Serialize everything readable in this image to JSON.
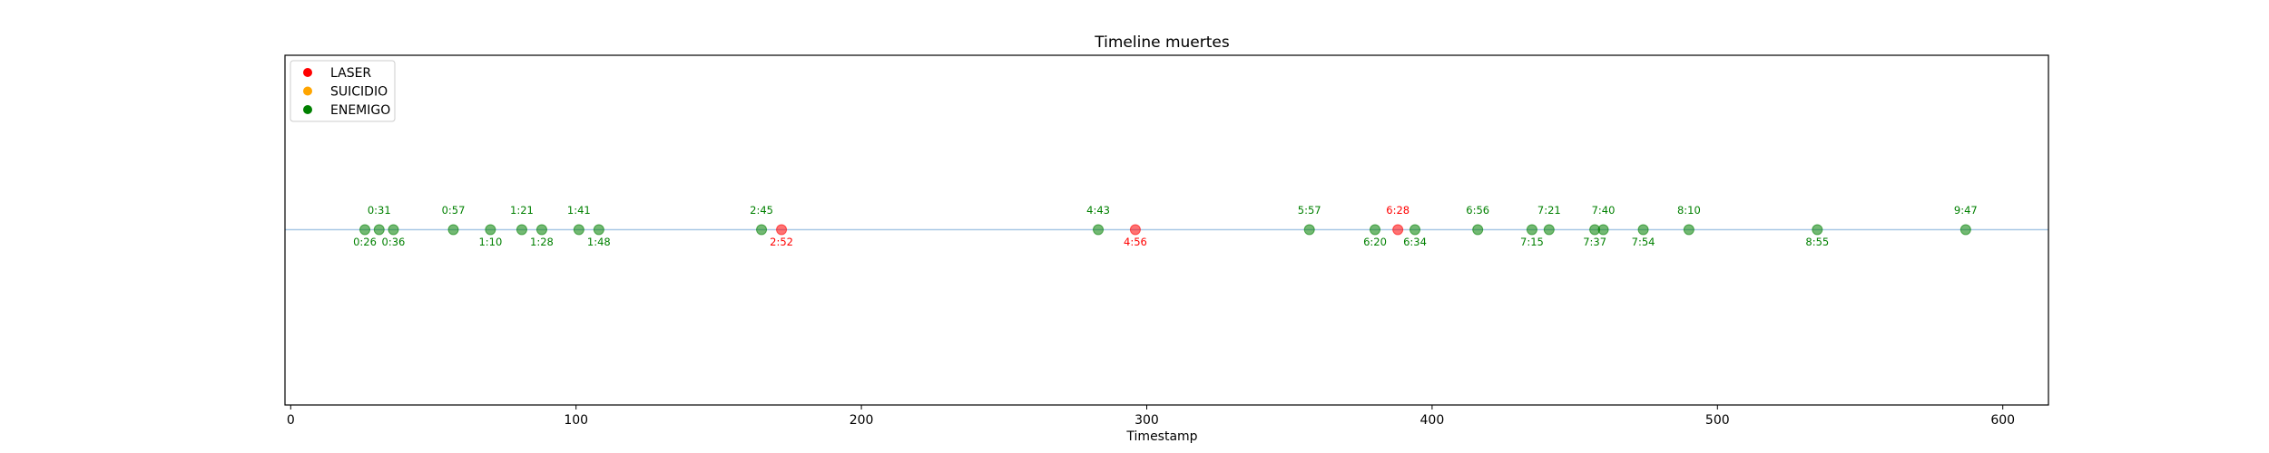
{
  "chart_data": {
    "type": "scatter",
    "title": "Timeline muertes",
    "xlabel": "Timestamp",
    "ylabel": "",
    "xlim": [
      -2,
      616
    ],
    "xticks": [
      0,
      100,
      200,
      300,
      400,
      500,
      600
    ],
    "grid": false,
    "legend_position": "upper-left",
    "baseline_color": "#a9c8e6",
    "series": [
      {
        "name": "LASER",
        "color": "#ff0000"
      },
      {
        "name": "SUICIDIO",
        "color": "#ffa500"
      },
      {
        "name": "ENEMIGO",
        "color": "#008000"
      }
    ],
    "points": [
      {
        "x": 26,
        "label": "0:26",
        "cause": "ENEMIGO"
      },
      {
        "x": 31,
        "label": "0:31",
        "cause": "ENEMIGO"
      },
      {
        "x": 36,
        "label": "0:36",
        "cause": "ENEMIGO"
      },
      {
        "x": 57,
        "label": "0:57",
        "cause": "ENEMIGO"
      },
      {
        "x": 70,
        "label": "1:10",
        "cause": "ENEMIGO"
      },
      {
        "x": 81,
        "label": "1:21",
        "cause": "ENEMIGO"
      },
      {
        "x": 88,
        "label": "1:28",
        "cause": "ENEMIGO"
      },
      {
        "x": 101,
        "label": "1:41",
        "cause": "ENEMIGO"
      },
      {
        "x": 108,
        "label": "1:48",
        "cause": "ENEMIGO"
      },
      {
        "x": 165,
        "label": "2:45",
        "cause": "ENEMIGO"
      },
      {
        "x": 172,
        "label": "2:52",
        "cause": "LASER"
      },
      {
        "x": 283,
        "label": "4:43",
        "cause": "ENEMIGO"
      },
      {
        "x": 296,
        "label": "4:56",
        "cause": "LASER"
      },
      {
        "x": 357,
        "label": "5:57",
        "cause": "ENEMIGO"
      },
      {
        "x": 380,
        "label": "6:20",
        "cause": "ENEMIGO"
      },
      {
        "x": 388,
        "label": "6:28",
        "cause": "LASER"
      },
      {
        "x": 394,
        "label": "6:34",
        "cause": "ENEMIGO"
      },
      {
        "x": 416,
        "label": "6:56",
        "cause": "ENEMIGO"
      },
      {
        "x": 435,
        "label": "7:15",
        "cause": "ENEMIGO"
      },
      {
        "x": 441,
        "label": "7:21",
        "cause": "ENEMIGO"
      },
      {
        "x": 457,
        "label": "7:37",
        "cause": "ENEMIGO"
      },
      {
        "x": 460,
        "label": "7:40",
        "cause": "ENEMIGO"
      },
      {
        "x": 474,
        "label": "7:54",
        "cause": "ENEMIGO"
      },
      {
        "x": 490,
        "label": "8:10",
        "cause": "ENEMIGO"
      },
      {
        "x": 535,
        "label": "8:55",
        "cause": "ENEMIGO"
      },
      {
        "x": 587,
        "label": "9:47",
        "cause": "ENEMIGO"
      }
    ]
  }
}
